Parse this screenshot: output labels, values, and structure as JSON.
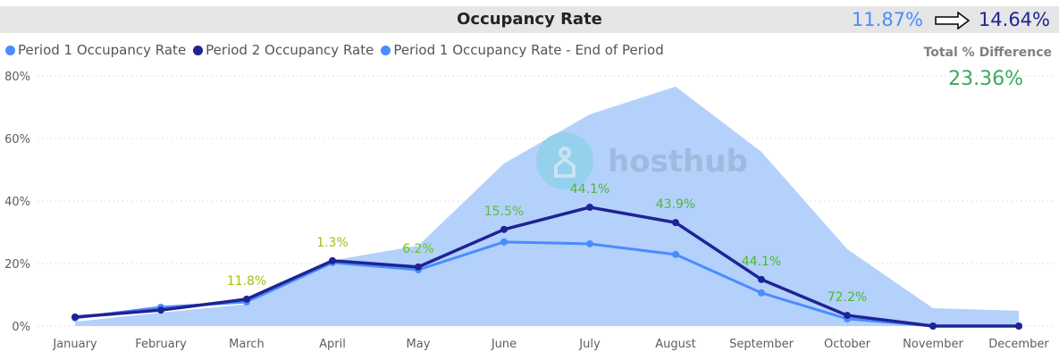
{
  "header": {
    "title": "Occupancy Rate",
    "period1_value": "11.87%",
    "period2_value": "14.64%",
    "arrow_icon": "right-arrow-icon"
  },
  "summary": {
    "label": "Total % Difference",
    "value": "23.36%"
  },
  "watermark": "hosthub",
  "chart_data": {
    "type": "line",
    "title": "Occupancy Rate",
    "categories": [
      "January",
      "February",
      "March",
      "April",
      "May",
      "June",
      "July",
      "August",
      "September",
      "October",
      "November",
      "December"
    ],
    "ylim": [
      0,
      80
    ],
    "yticks": [
      {
        "v": 0,
        "label": "0%"
      },
      {
        "v": 20,
        "label": "20%"
      },
      {
        "v": 40,
        "label": "40%"
      },
      {
        "v": 60,
        "label": "60%"
      },
      {
        "v": 80,
        "label": "80%"
      }
    ],
    "grid": true,
    "legend_placement": "top-left",
    "series": [
      {
        "name": "Period 1 Occupancy Rate - End of Period",
        "kind": "area",
        "color": "#b3d1fb",
        "values": [
          1.4,
          4.3,
          7,
          21,
          25.7,
          52,
          67.7,
          76.6,
          55.7,
          24.6,
          5.7,
          4.9
        ]
      },
      {
        "name": "Period 1 Occupancy Rate",
        "kind": "line",
        "color": "#4a8cff",
        "values": [
          2.6,
          6,
          7.7,
          20.3,
          18,
          26.9,
          26.3,
          22.9,
          10.6,
          2.3,
          0,
          0
        ]
      },
      {
        "name": "Period 2 Occupancy Rate",
        "kind": "line",
        "color": "#1f2394",
        "values": [
          2.9,
          5.1,
          8.6,
          20.9,
          18.9,
          30.9,
          38,
          33.1,
          14.9,
          3.4,
          0,
          0
        ]
      }
    ],
    "data_labels": [
      {
        "month": "March",
        "label": "11.8%",
        "color": "#9fbd16"
      },
      {
        "month": "April",
        "label": "1.3%",
        "color": "#a3bd1a"
      },
      {
        "month": "May",
        "label": "6.2%",
        "color": "#6dbf2c"
      },
      {
        "month": "June",
        "label": "15.5%",
        "color": "#5cbd3a"
      },
      {
        "month": "July",
        "label": "44.1%",
        "color": "#4cb834"
      },
      {
        "month": "August",
        "label": "43.9%",
        "color": "#4cb834"
      },
      {
        "month": "September",
        "label": "44.1%",
        "color": "#4cb834"
      },
      {
        "month": "October",
        "label": "72.2%",
        "color": "#4cb834"
      }
    ]
  },
  "legend": [
    {
      "label": "Period 1 Occupancy Rate",
      "color": "#4a8cff"
    },
    {
      "label": "Period 2 Occupancy Rate",
      "color": "#1f2394"
    },
    {
      "label": "Period 1 Occupancy Rate - End of Period",
      "color": "#4a8cff"
    }
  ]
}
